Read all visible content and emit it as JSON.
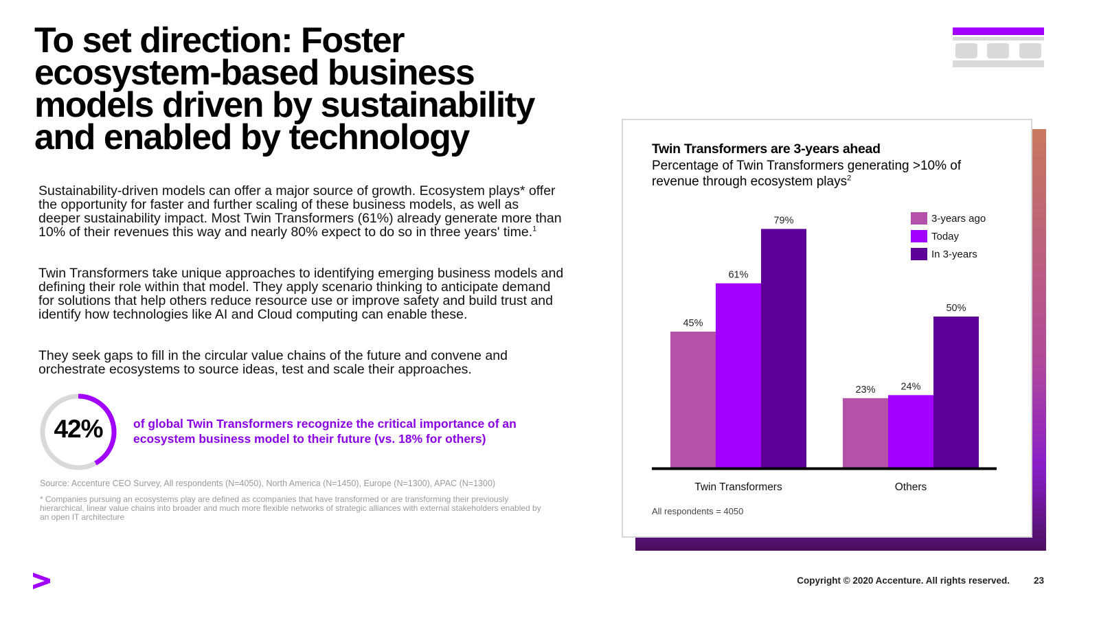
{
  "slide": {
    "title": "To set direction: Foster ecosystem-based business models driven by sustainability and enabled by technology",
    "paragraph1": "Sustainability-driven models can offer a major source of growth. Ecosystem plays* offer the opportunity for faster and further scaling of these business models, as well as deeper sustainability impact. Most Twin Transformers (61%) already generate more than 10% of their revenues this way and nearly 80% expect to do so in three years' time.",
    "paragraph1_note": "1",
    "paragraph2": "Twin Transformers take unique approaches to identifying emerging business models and defining their role within that model. They apply scenario thinking to anticipate demand for solutions that help others reduce resource use or improve safety and build trust and identify how technologies like AI and Cloud computing can enable these.",
    "paragraph3": "They seek gaps to fill in the circular value chains of the future and convene and orchestrate ecosystems to source ideas, test and scale their approaches."
  },
  "stat": {
    "value": "42%",
    "fraction": 0.42,
    "text": "of global Twin Transformers recognize the critical importance of an ecosystem business model to their future (vs. 18% for others)"
  },
  "source": "Source: Accenture CEO Survey, All respondents (N=4050), North America (N=1450), Europe (N=1300), APAC (N=1300)",
  "footnote": "* Companies pursuing an ecosystems play are defined as ccompanies that have transformed or are transforming their previously hierarchical, linear value chains into broader and much more flexible networks of strategic alliances with external stakeholders enabled by an open IT architecture",
  "footer": {
    "copyright": "Copyright © 2020 Accenture. All rights reserved.",
    "page": "23"
  },
  "colors": {
    "accent": "#a100ff",
    "stat_text": "#8a00e6",
    "ring_track": "#d9d9d9",
    "series": [
      "#b452aa",
      "#a100ff",
      "#5c0097"
    ]
  },
  "chart_data": {
    "type": "bar",
    "title": "Twin Transformers are 3-years ahead",
    "subtitle": "Percentage of Twin Transformers generating >10% of revenue through ecosystem plays",
    "subtitle_note": "2",
    "categories": [
      "Twin Transformers",
      "Others"
    ],
    "series": [
      {
        "name": "3-years ago",
        "values": [
          45,
          23
        ],
        "labels": [
          "45%",
          "23%"
        ]
      },
      {
        "name": "Today",
        "values": [
          61,
          24
        ],
        "labels": [
          "61%",
          "24%"
        ]
      },
      {
        "name": "In 3-years",
        "values": [
          79,
          50
        ],
        "labels": [
          "79%",
          "50%"
        ]
      }
    ],
    "ylim": [
      0,
      100
    ],
    "grid": false,
    "legend_position": "top-right",
    "note": "All respondents = 4050"
  }
}
